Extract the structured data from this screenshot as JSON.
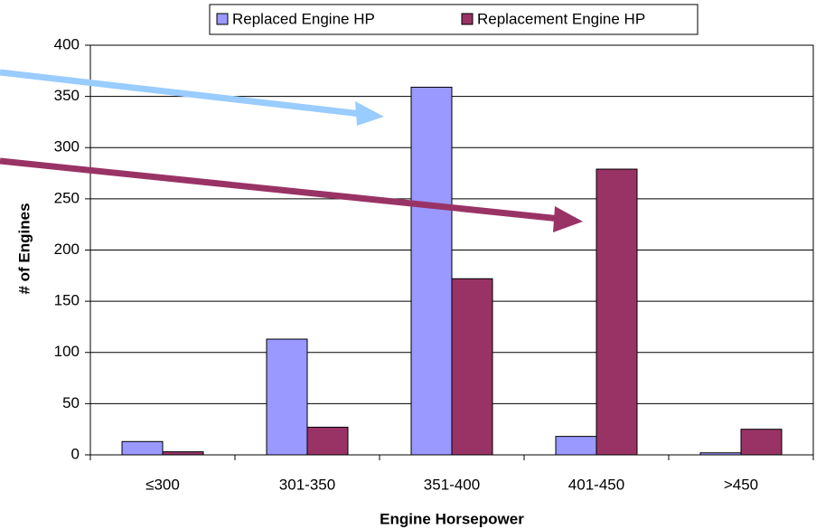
{
  "chart_data": {
    "type": "bar",
    "x_label": "Engine Horsepower",
    "y_label": "# of Engines",
    "categories": [
      "≤300",
      "301-350",
      "351-400",
      "401-450",
      ">450"
    ],
    "series": [
      {
        "name": "Replaced Engine HP",
        "color": "#9999ff",
        "values": [
          13,
          113,
          359,
          18,
          2
        ]
      },
      {
        "name": "Replacement Engine HP",
        "color": "#993366",
        "values": [
          3,
          27,
          172,
          279,
          25
        ]
      }
    ],
    "ylim": [
      0,
      400
    ],
    "yticks": [
      0,
      50,
      100,
      150,
      200,
      250,
      300,
      350,
      400
    ],
    "grid": true
  }
}
